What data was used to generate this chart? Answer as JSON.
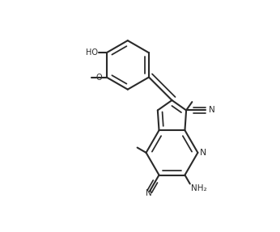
{
  "bg_color": "#ffffff",
  "line_color": "#2a2a2a",
  "lw": 1.5,
  "figsize": [
    3.46,
    2.87
  ],
  "dpi": 100,
  "xlim": [
    -0.55,
    1.0
  ],
  "ylim": [
    -0.88,
    0.82
  ]
}
